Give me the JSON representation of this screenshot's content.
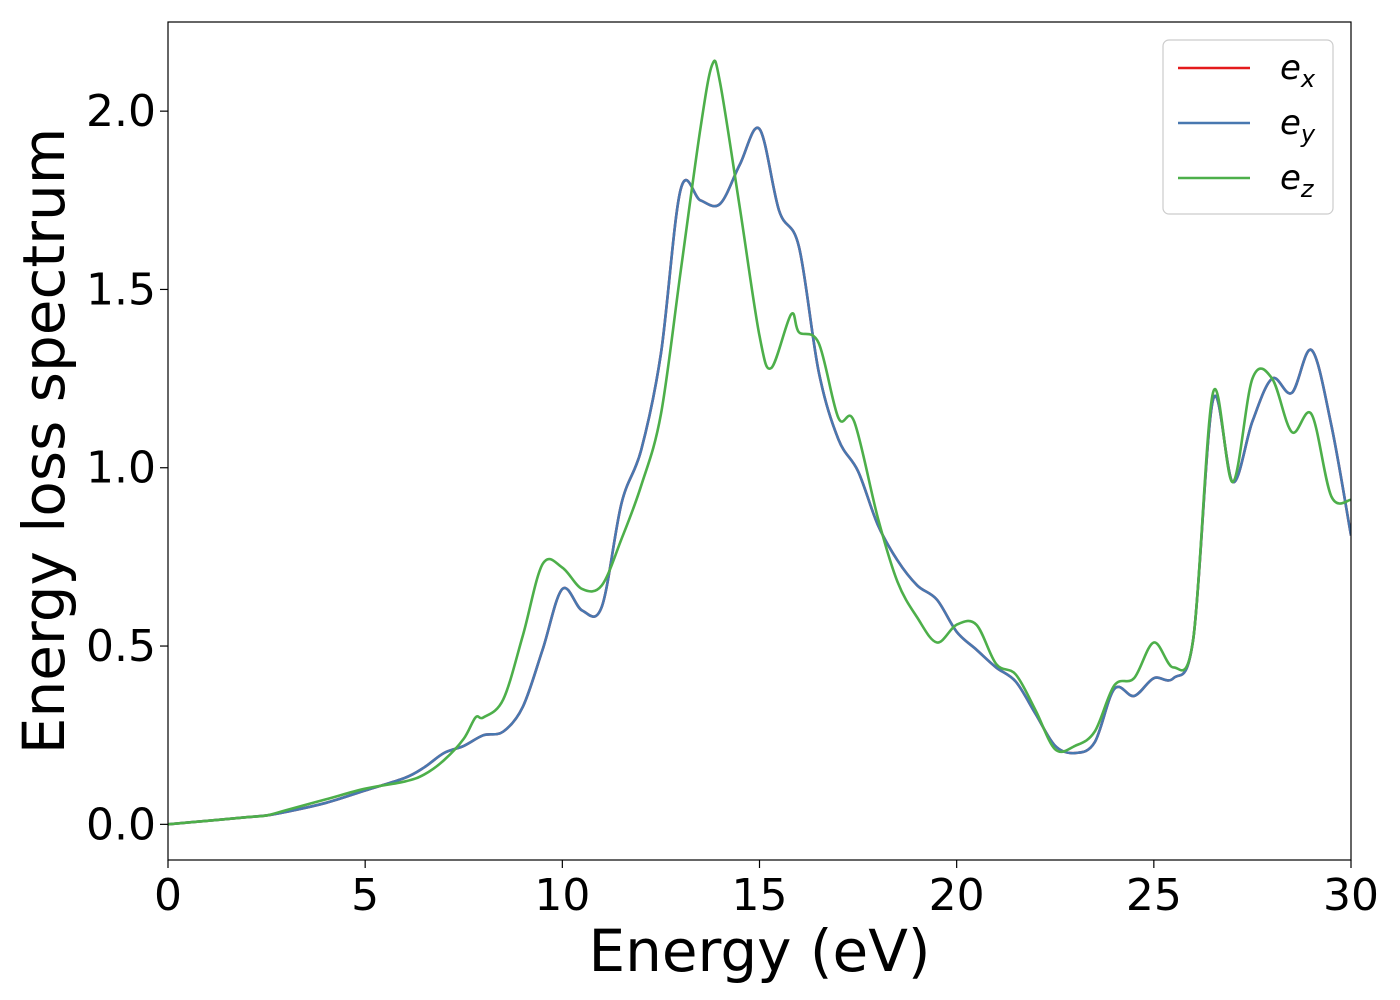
{
  "chart_data": {
    "type": "line",
    "title": "",
    "xlabel": "Energy (eV)",
    "ylabel": "Energy loss spectrum",
    "xlim": [
      0,
      30
    ],
    "ylim": [
      -0.1,
      2.25
    ],
    "xticks": [
      0,
      5,
      10,
      15,
      20,
      25,
      30
    ],
    "xtick_labels": [
      "0",
      "5",
      "10",
      "15",
      "20",
      "25",
      "30"
    ],
    "yticks": [
      0.0,
      0.5,
      1.0,
      1.5,
      2.0
    ],
    "ytick_labels": [
      "0.0",
      "0.5",
      "1.0",
      "1.5",
      "2.0"
    ],
    "grid": false,
    "legend_position": "top-right",
    "series": [
      {
        "name": "e_x",
        "legend_base": "e",
        "legend_sub": "x",
        "color": "#e41a1c",
        "x": [
          0,
          1,
          2,
          2.5,
          3,
          4,
          5,
          6,
          6.5,
          7,
          7.5,
          8,
          8.5,
          9,
          9.5,
          10,
          10.5,
          11,
          11.5,
          12,
          12.5,
          13,
          13.5,
          14,
          14.5,
          15,
          15.5,
          16,
          16.5,
          17,
          17.5,
          18,
          18.5,
          19,
          19.5,
          20,
          20.5,
          21,
          21.5,
          22,
          22.5,
          23,
          23.5,
          24,
          24.5,
          25,
          25.5,
          26,
          26.5,
          27,
          27.5,
          28,
          28.5,
          29,
          29.5,
          30
        ],
        "values": [
          0,
          0.01,
          0.02,
          0.025,
          0.035,
          0.06,
          0.095,
          0.13,
          0.16,
          0.2,
          0.22,
          0.25,
          0.26,
          0.33,
          0.49,
          0.66,
          0.6,
          0.61,
          0.9,
          1.05,
          1.32,
          1.78,
          1.75,
          1.74,
          1.85,
          1.95,
          1.72,
          1.62,
          1.27,
          1.08,
          0.99,
          0.84,
          0.74,
          0.67,
          0.63,
          0.54,
          0.49,
          0.44,
          0.4,
          0.31,
          0.22,
          0.2,
          0.23,
          0.38,
          0.36,
          0.41,
          0.41,
          0.52,
          1.19,
          0.96,
          1.13,
          1.25,
          1.21,
          1.33,
          1.12,
          0.81
        ]
      },
      {
        "name": "e_y",
        "legend_base": "e",
        "legend_sub": "y",
        "color": "#4878b0",
        "x": [
          0,
          1,
          2,
          2.5,
          3,
          4,
          5,
          6,
          6.5,
          7,
          7.5,
          8,
          8.5,
          9,
          9.5,
          10,
          10.5,
          11,
          11.5,
          12,
          12.5,
          13,
          13.5,
          14,
          14.5,
          15,
          15.5,
          16,
          16.5,
          17,
          17.5,
          18,
          18.5,
          19,
          19.5,
          20,
          20.5,
          21,
          21.5,
          22,
          22.5,
          23,
          23.5,
          24,
          24.5,
          25,
          25.5,
          26,
          26.5,
          27,
          27.5,
          28,
          28.5,
          29,
          29.5,
          30
        ],
        "values": [
          0,
          0.01,
          0.02,
          0.025,
          0.035,
          0.06,
          0.095,
          0.13,
          0.16,
          0.2,
          0.22,
          0.25,
          0.26,
          0.33,
          0.49,
          0.66,
          0.6,
          0.61,
          0.9,
          1.05,
          1.32,
          1.78,
          1.75,
          1.74,
          1.85,
          1.95,
          1.72,
          1.62,
          1.27,
          1.08,
          0.99,
          0.84,
          0.74,
          0.67,
          0.63,
          0.54,
          0.49,
          0.44,
          0.4,
          0.31,
          0.22,
          0.2,
          0.23,
          0.38,
          0.36,
          0.41,
          0.41,
          0.52,
          1.19,
          0.96,
          1.13,
          1.25,
          1.21,
          1.33,
          1.12,
          0.81
        ]
      },
      {
        "name": "e_z",
        "legend_base": "e",
        "legend_sub": "z",
        "color": "#4daf4a",
        "x": [
          0,
          1,
          2,
          2.5,
          3,
          4,
          5,
          6,
          6.5,
          7,
          7.5,
          7.8,
          8,
          8.5,
          9,
          9.5,
          10,
          10.5,
          11,
          11.5,
          12,
          12.5,
          13,
          13.5,
          13.8,
          14,
          14.5,
          15,
          15.3,
          15.8,
          16,
          16.5,
          17,
          17.4,
          18,
          18.5,
          19,
          19.5,
          20,
          20.5,
          21,
          21.5,
          22,
          22.5,
          23,
          23.5,
          24,
          24.5,
          25,
          25.5,
          26,
          26.5,
          27,
          27.5,
          28,
          28.5,
          29,
          29.5,
          30
        ],
        "values": [
          0,
          0.01,
          0.02,
          0.025,
          0.04,
          0.07,
          0.1,
          0.12,
          0.14,
          0.18,
          0.24,
          0.3,
          0.3,
          0.35,
          0.53,
          0.73,
          0.72,
          0.66,
          0.67,
          0.8,
          0.95,
          1.15,
          1.55,
          1.95,
          2.13,
          2.08,
          1.73,
          1.37,
          1.28,
          1.43,
          1.38,
          1.35,
          1.14,
          1.13,
          0.86,
          0.68,
          0.58,
          0.51,
          0.56,
          0.56,
          0.45,
          0.42,
          0.32,
          0.21,
          0.22,
          0.26,
          0.39,
          0.41,
          0.51,
          0.44,
          0.52,
          1.21,
          0.96,
          1.25,
          1.25,
          1.1,
          1.15,
          0.92,
          0.91
        ]
      }
    ]
  }
}
